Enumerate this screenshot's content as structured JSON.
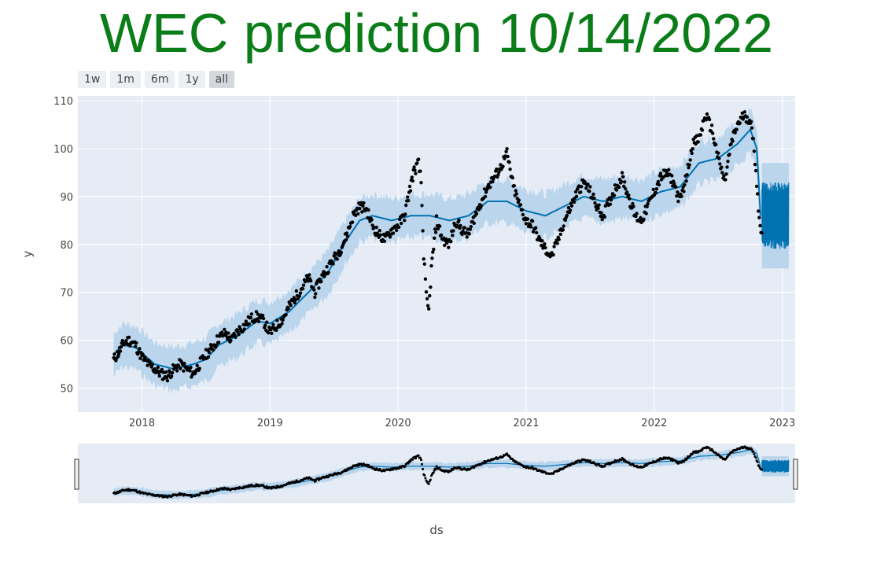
{
  "title": "WEC prediction 10/14/2022",
  "range_selector": {
    "buttons": [
      {
        "label": "1w",
        "active": false
      },
      {
        "label": "1m",
        "active": false
      },
      {
        "label": "6m",
        "active": false
      },
      {
        "label": "1y",
        "active": false
      },
      {
        "label": "all",
        "active": true
      }
    ]
  },
  "colors": {
    "observed": "#000000",
    "forecast_line": "#0072b2",
    "uncertainty_band": "#b3d1ea",
    "plot_bg": "#e5ecf6",
    "grid": "#ffffff",
    "title": "#0a7d18"
  },
  "chart_data": {
    "type": "line",
    "xlabel": "ds",
    "ylabel": "y",
    "xlim": [
      2017.5,
      2023.1
    ],
    "ylim": [
      45,
      111
    ],
    "x_ticks": [
      "2018",
      "2019",
      "2020",
      "2021",
      "2022",
      "2023"
    ],
    "y_ticks": [
      50,
      60,
      70,
      80,
      90,
      100,
      110
    ],
    "grid": true,
    "has_rangeslider": true,
    "forecast_end": 2023.05,
    "series": [
      {
        "kind": "observed_points",
        "points": [
          [
            2017.78,
            56
          ],
          [
            2017.82,
            57.5
          ],
          [
            2017.86,
            59.5
          ],
          [
            2017.9,
            60
          ],
          [
            2017.95,
            59
          ],
          [
            2018.0,
            56.5
          ],
          [
            2018.05,
            55
          ],
          [
            2018.1,
            54
          ],
          [
            2018.15,
            53
          ],
          [
            2018.2,
            52.5
          ],
          [
            2018.25,
            54
          ],
          [
            2018.3,
            55
          ],
          [
            2018.35,
            54
          ],
          [
            2018.4,
            53
          ],
          [
            2018.45,
            55
          ],
          [
            2018.5,
            57
          ],
          [
            2018.55,
            58.5
          ],
          [
            2018.6,
            60.5
          ],
          [
            2018.65,
            61.5
          ],
          [
            2018.7,
            60
          ],
          [
            2018.75,
            62
          ],
          [
            2018.8,
            63
          ],
          [
            2018.85,
            64.5
          ],
          [
            2018.9,
            65
          ],
          [
            2018.95,
            64
          ],
          [
            2019.0,
            61.5
          ],
          [
            2019.05,
            63
          ],
          [
            2019.1,
            64.5
          ],
          [
            2019.15,
            67
          ],
          [
            2019.2,
            69
          ],
          [
            2019.25,
            71
          ],
          [
            2019.3,
            73
          ],
          [
            2019.35,
            70
          ],
          [
            2019.4,
            73
          ],
          [
            2019.45,
            75
          ],
          [
            2019.5,
            77
          ],
          [
            2019.55,
            79
          ],
          [
            2019.6,
            82
          ],
          [
            2019.65,
            86
          ],
          [
            2019.7,
            88
          ],
          [
            2019.75,
            87.5
          ],
          [
            2019.8,
            84
          ],
          [
            2019.85,
            82
          ],
          [
            2019.9,
            81
          ],
          [
            2019.95,
            83
          ],
          [
            2020.0,
            84
          ],
          [
            2020.05,
            86
          ],
          [
            2020.08,
            90
          ],
          [
            2020.12,
            95
          ],
          [
            2020.16,
            97
          ],
          [
            2020.18,
            93
          ],
          [
            2020.2,
            78
          ],
          [
            2020.22,
            69
          ],
          [
            2020.24,
            66
          ],
          [
            2020.26,
            75
          ],
          [
            2020.3,
            85
          ],
          [
            2020.35,
            81
          ],
          [
            2020.4,
            80
          ],
          [
            2020.45,
            85
          ],
          [
            2020.5,
            83
          ],
          [
            2020.55,
            82
          ],
          [
            2020.6,
            86
          ],
          [
            2020.65,
            89
          ],
          [
            2020.7,
            92
          ],
          [
            2020.75,
            94
          ],
          [
            2020.8,
            96
          ],
          [
            2020.85,
            99
          ],
          [
            2020.9,
            92
          ],
          [
            2020.95,
            88
          ],
          [
            2021.0,
            85
          ],
          [
            2021.05,
            84
          ],
          [
            2021.1,
            81
          ],
          [
            2021.15,
            79
          ],
          [
            2021.2,
            77.5
          ],
          [
            2021.25,
            81
          ],
          [
            2021.3,
            85
          ],
          [
            2021.35,
            88
          ],
          [
            2021.4,
            91
          ],
          [
            2021.45,
            93
          ],
          [
            2021.5,
            91
          ],
          [
            2021.55,
            88
          ],
          [
            2021.6,
            86
          ],
          [
            2021.65,
            89
          ],
          [
            2021.7,
            92
          ],
          [
            2021.75,
            94
          ],
          [
            2021.8,
            90
          ],
          [
            2021.85,
            86
          ],
          [
            2021.9,
            85
          ],
          [
            2021.95,
            88
          ],
          [
            2022.0,
            91
          ],
          [
            2022.05,
            94
          ],
          [
            2022.1,
            95
          ],
          [
            2022.15,
            93
          ],
          [
            2022.2,
            89
          ],
          [
            2022.25,
            94
          ],
          [
            2022.3,
            101
          ],
          [
            2022.35,
            102
          ],
          [
            2022.4,
            107
          ],
          [
            2022.45,
            104
          ],
          [
            2022.5,
            98
          ],
          [
            2022.55,
            93
          ],
          [
            2022.6,
            101
          ],
          [
            2022.65,
            105
          ],
          [
            2022.7,
            107
          ],
          [
            2022.75,
            106
          ],
          [
            2022.78,
            100
          ],
          [
            2022.8,
            93
          ],
          [
            2022.82,
            85
          ],
          [
            2022.84,
            82
          ]
        ]
      },
      {
        "kind": "forecast_yhat",
        "points": [
          [
            2017.78,
            57
          ],
          [
            2017.85,
            59
          ],
          [
            2017.95,
            58.5
          ],
          [
            2018.1,
            55
          ],
          [
            2018.25,
            54
          ],
          [
            2018.4,
            55
          ],
          [
            2018.5,
            56
          ],
          [
            2018.6,
            59
          ],
          [
            2018.75,
            61
          ],
          [
            2018.9,
            64
          ],
          [
            2019.0,
            63.5
          ],
          [
            2019.15,
            66
          ],
          [
            2019.3,
            70
          ],
          [
            2019.45,
            74
          ],
          [
            2019.6,
            81
          ],
          [
            2019.7,
            85
          ],
          [
            2019.8,
            86
          ],
          [
            2019.95,
            85
          ],
          [
            2020.1,
            86
          ],
          [
            2020.25,
            86
          ],
          [
            2020.4,
            85
          ],
          [
            2020.55,
            86
          ],
          [
            2020.7,
            89
          ],
          [
            2020.85,
            89
          ],
          [
            2021.0,
            87
          ],
          [
            2021.15,
            86
          ],
          [
            2021.3,
            88
          ],
          [
            2021.45,
            90
          ],
          [
            2021.6,
            89
          ],
          [
            2021.75,
            90
          ],
          [
            2021.9,
            89
          ],
          [
            2022.05,
            91
          ],
          [
            2022.2,
            92
          ],
          [
            2022.35,
            97
          ],
          [
            2022.5,
            98
          ],
          [
            2022.65,
            101
          ],
          [
            2022.75,
            104
          ],
          [
            2022.8,
            100
          ],
          [
            2022.83,
            86
          ]
        ],
        "forecast_range": [
          2022.84,
          2023.05
        ],
        "forecast_center": 86,
        "forecast_spread": 7
      },
      {
        "kind": "uncertainty_band",
        "width": 4.5
      }
    ]
  }
}
